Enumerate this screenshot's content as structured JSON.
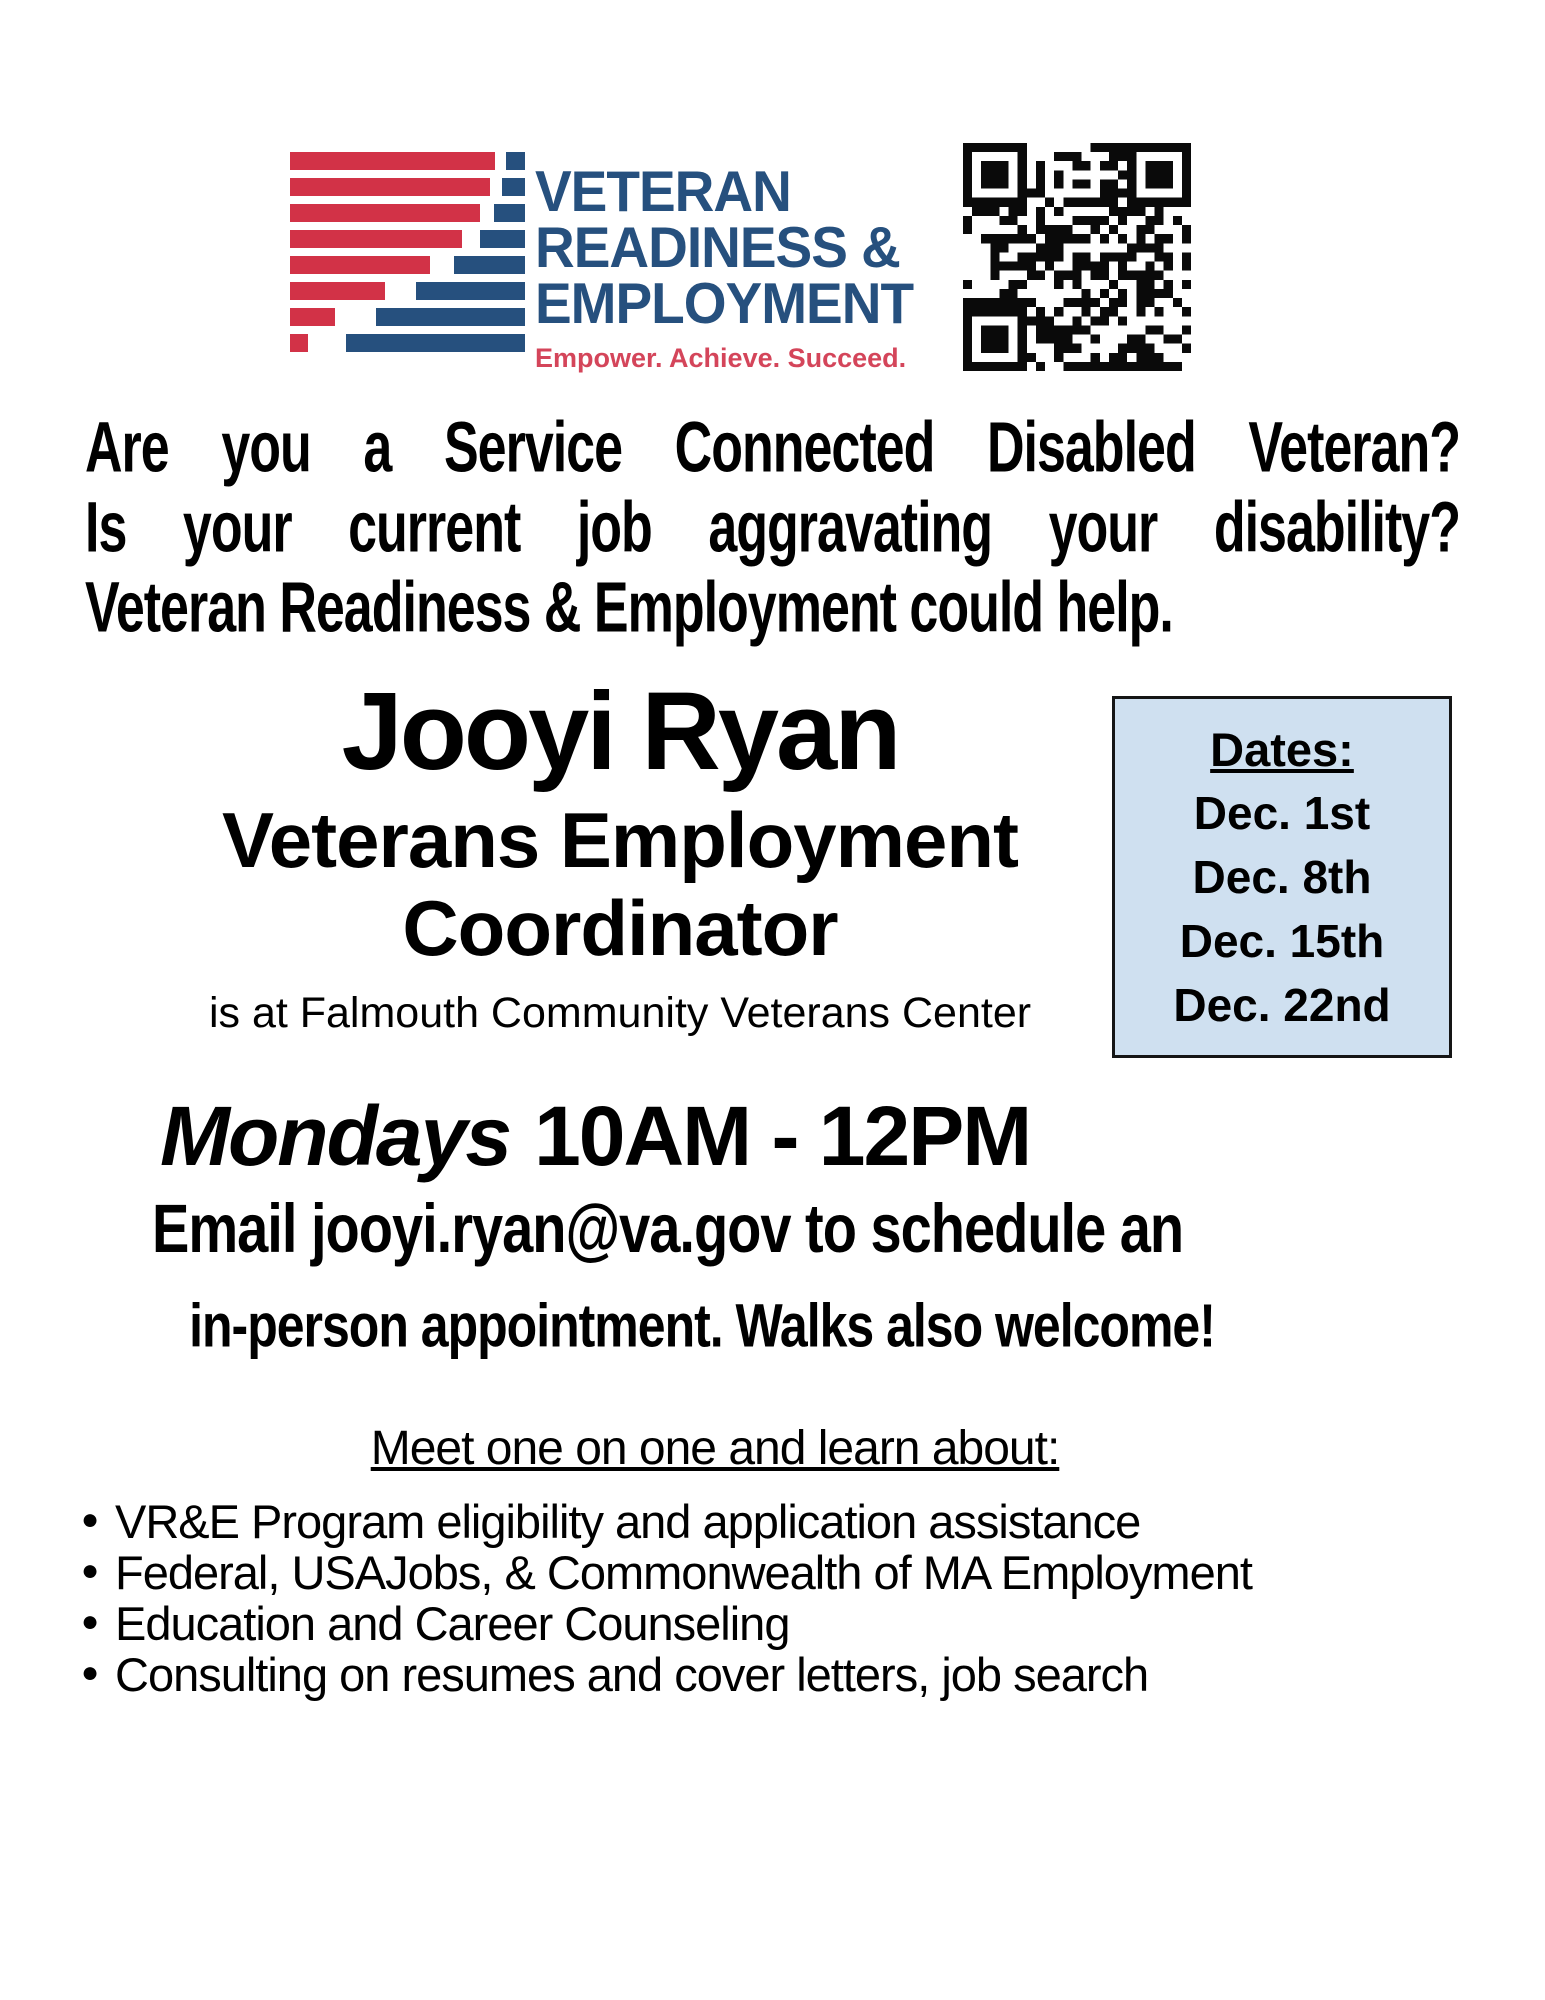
{
  "logo": {
    "line1": "VETERAN",
    "line2": "READINESS &",
    "line3": "EMPLOYMENT",
    "tagline": "Empower. Achieve. Succeed.",
    "colors": {
      "navy": "#26507e",
      "stripe_red": "#d23247",
      "tagline_red": "#d4455a"
    }
  },
  "qr": {
    "name": "qr-code"
  },
  "intro": {
    "line1": "Are you a Service Connected Disabled Veteran?",
    "line2": "Is your current job aggravating your disability?",
    "line3": "Veteran Readiness & Employment could help."
  },
  "coordinator": {
    "name": "Jooyi Ryan",
    "title_line1": "Veterans Employment",
    "title_line2": "Coordinator",
    "location": "is at Falmouth Community Veterans Center"
  },
  "dates_box": {
    "heading": "Dates:",
    "dates": [
      "Dec. 1st",
      "Dec. 8th",
      "Dec. 15th",
      "Dec. 22nd"
    ],
    "bg": "#cfe0f0"
  },
  "schedule": {
    "day": "Mondays",
    "time": "10AM - 12PM",
    "email_line1": "Email jooyi.ryan@va.gov to schedule an",
    "email_line2": "in-person appointment. Walks also welcome!"
  },
  "learn": {
    "heading": "Meet one on one and learn about:",
    "bullets": [
      "VR&E Program eligibility and application assistance",
      "Federal, USAJobs, & Commonwealth of MA Employment",
      "Education and Career Counseling",
      "Consulting on resumes and cover letters, job search"
    ]
  }
}
